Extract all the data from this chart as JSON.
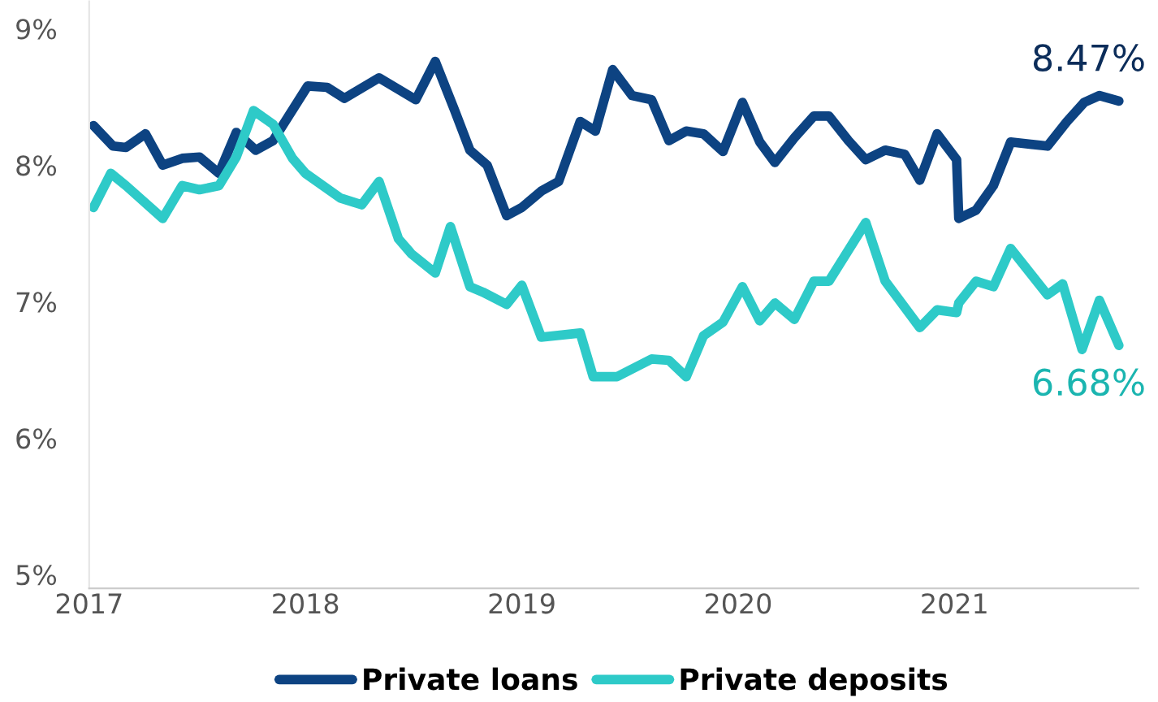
{
  "chart_data": {
    "type": "line",
    "series": [
      {
        "name": "Private loans",
        "color": "#0d4382",
        "x": [
          2017.02,
          2017.11,
          2017.17,
          2017.26,
          2017.34,
          2017.43,
          2017.51,
          2017.6,
          2017.68,
          2017.77,
          2017.85,
          2018.01,
          2018.1,
          2018.18,
          2018.34,
          2018.51,
          2018.6,
          2018.69,
          2018.76,
          2018.84,
          2018.93,
          2019.0,
          2019.09,
          2019.17,
          2019.27,
          2019.34,
          2019.42,
          2019.51,
          2019.6,
          2019.68,
          2019.76,
          2019.84,
          2019.93,
          2020.02,
          2020.1,
          2020.17,
          2020.26,
          2020.35,
          2020.42,
          2020.51,
          2020.59,
          2020.68,
          2020.77,
          2020.84,
          2020.92,
          2021.01,
          2021.02,
          2021.1,
          2021.18,
          2021.26,
          2021.43,
          2021.52,
          2021.6,
          2021.67,
          2021.76
        ],
        "values": [
          8.29,
          8.14,
          8.13,
          8.23,
          8.0,
          8.05,
          8.06,
          7.94,
          8.24,
          8.11,
          8.18,
          8.58,
          8.57,
          8.49,
          8.64,
          8.48,
          8.76,
          8.4,
          8.11,
          8.0,
          7.63,
          7.69,
          7.81,
          7.88,
          8.32,
          8.25,
          8.7,
          8.51,
          8.48,
          8.18,
          8.25,
          8.23,
          8.1,
          8.46,
          8.17,
          8.02,
          8.2,
          8.36,
          8.36,
          8.18,
          8.04,
          8.11,
          8.08,
          7.89,
          8.23,
          8.04,
          7.61,
          7.67,
          7.85,
          8.17,
          8.14,
          8.32,
          8.46,
          8.51,
          8.47
        ]
      },
      {
        "name": "Private deposits",
        "color": "#2ecac8",
        "x": [
          2017.02,
          2017.1,
          2017.17,
          2017.34,
          2017.43,
          2017.51,
          2017.6,
          2017.68,
          2017.76,
          2017.85,
          2017.94,
          2018.0,
          2018.16,
          2018.26,
          2018.34,
          2018.43,
          2018.49,
          2018.6,
          2018.67,
          2018.76,
          2018.82,
          2018.93,
          2019.0,
          2019.09,
          2019.27,
          2019.33,
          2019.44,
          2019.6,
          2019.68,
          2019.76,
          2019.84,
          2019.93,
          2020.02,
          2020.1,
          2020.17,
          2020.26,
          2020.35,
          2020.42,
          2020.59,
          2020.68,
          2020.84,
          2020.92,
          2021.01,
          2021.02,
          2021.1,
          2021.18,
          2021.26,
          2021.43,
          2021.5,
          2021.59,
          2021.67,
          2021.76
        ],
        "values": [
          7.69,
          7.94,
          7.85,
          7.61,
          7.85,
          7.82,
          7.85,
          8.06,
          8.4,
          8.3,
          8.05,
          7.94,
          7.76,
          7.71,
          7.88,
          7.46,
          7.35,
          7.21,
          7.55,
          7.11,
          7.07,
          6.98,
          7.12,
          6.74,
          6.77,
          6.45,
          6.45,
          6.58,
          6.57,
          6.45,
          6.75,
          6.85,
          7.11,
          6.86,
          6.99,
          6.87,
          7.15,
          7.15,
          7.58,
          7.15,
          6.81,
          6.94,
          6.92,
          6.99,
          7.15,
          7.11,
          7.39,
          7.05,
          7.13,
          6.65,
          7.01,
          6.68
        ]
      }
    ],
    "annotations": [
      {
        "text": "8.47%",
        "x": 2021.76,
        "y": 8.47
      },
      {
        "text": "6.68%",
        "x": 2021.76,
        "y": 6.68
      }
    ],
    "xlim": [
      2017,
      2021.85
    ],
    "xticks": [
      2017,
      2018,
      2019,
      2020,
      2021
    ],
    "ylim": [
      4.9,
      9.2
    ],
    "yticks": [
      {
        "value": 5,
        "label": "5%"
      },
      {
        "value": 6,
        "label": "6%"
      },
      {
        "value": 7,
        "label": "7%"
      },
      {
        "value": 8,
        "label": "8%"
      },
      {
        "value": 9,
        "label": "9%"
      }
    ],
    "grid": false,
    "legend": "bottom",
    "line_style": "solid",
    "marker": "none"
  }
}
